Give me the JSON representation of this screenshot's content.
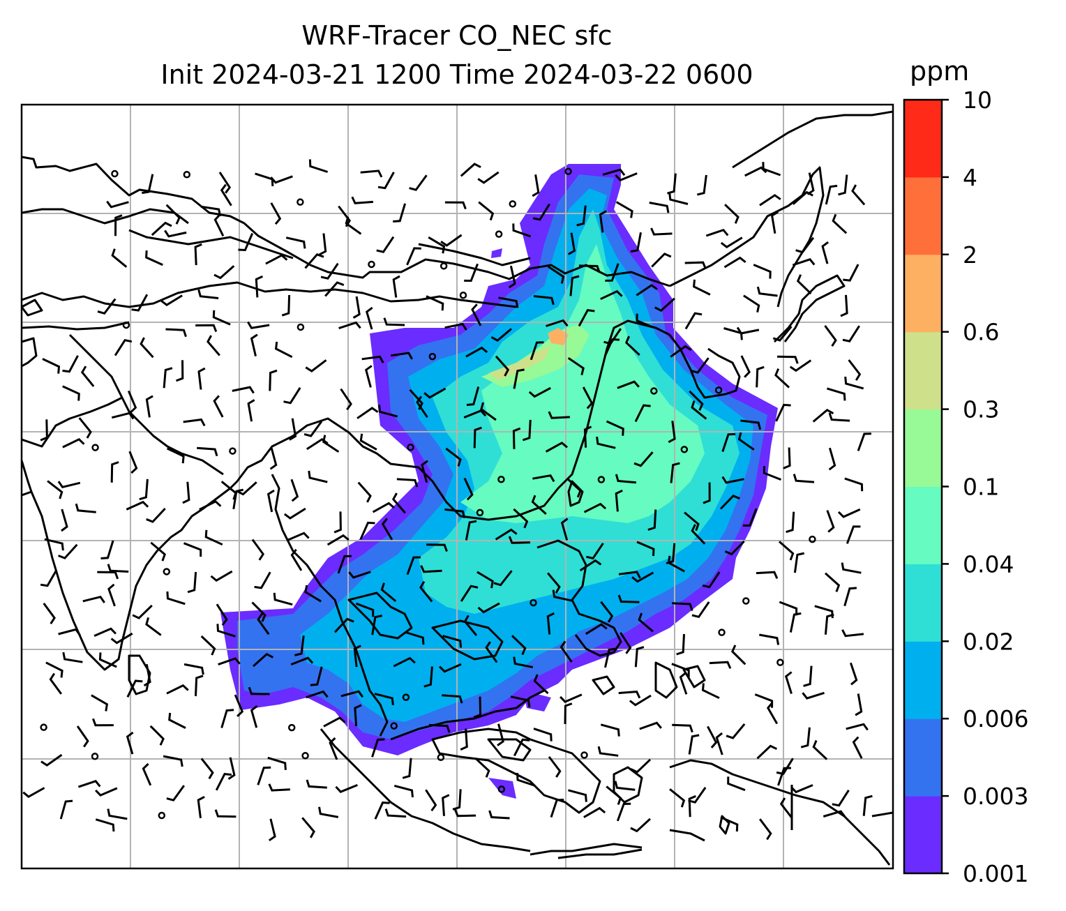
{
  "title_line1": "WRF-Tracer CO_NEC sfc",
  "title_line2": "Init 2024-03-21 1200 Time 2024-03-22 0600",
  "chart_data": {
    "type": "heatmap",
    "title": "WRF-Tracer CO_NEC sfc",
    "subtitle": "Init 2024-03-21 1200 Time 2024-03-22 0600",
    "colorbar": {
      "label": "ppm",
      "levels": [
        "0.001",
        "0.003",
        "0.006",
        "0.02",
        "0.04",
        "0.1",
        "0.3",
        "0.6",
        "2",
        "4",
        "10"
      ],
      "colors": [
        "#6a2cff",
        "#3373f0",
        "#00b0ee",
        "#2fdfd6",
        "#66fbc0",
        "#98f997",
        "#cfe08a",
        "#fdb062",
        "#ff6f3a",
        "#ff2a18"
      ]
    },
    "map": {
      "gridlines": true,
      "coastlines": true,
      "wind_barbs": true
    }
  }
}
